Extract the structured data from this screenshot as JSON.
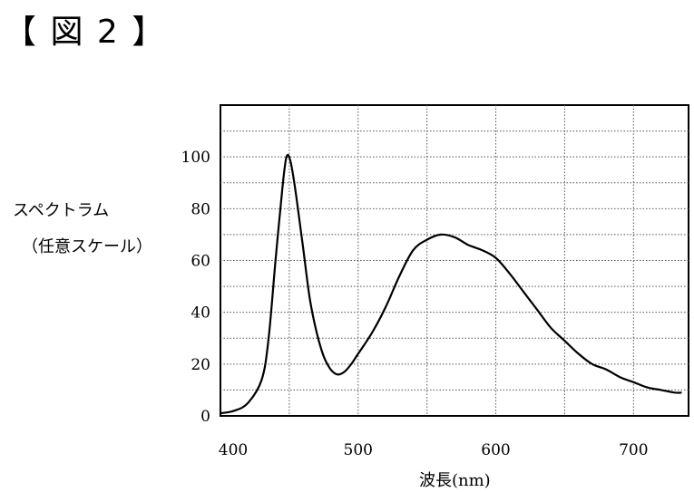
{
  "figure_label": "【 図 2 】",
  "chart_data": {
    "type": "line",
    "title": "",
    "xlabel": "波長(nm)",
    "ylabel_lines": [
      "スペクトラム",
      "（任意スケール）"
    ],
    "xlim": [
      400,
      740
    ],
    "ylim": [
      0,
      120
    ],
    "xticks": [
      400,
      500,
      600,
      700
    ],
    "yticks": [
      0,
      20,
      40,
      60,
      80,
      100
    ],
    "grid": true,
    "series": [
      {
        "x": [
          400,
          410,
          420,
          430,
          435,
          440,
          445,
          448,
          451,
          455,
          460,
          465,
          470,
          475,
          480,
          485,
          490,
          495,
          500,
          510,
          520,
          530,
          540,
          550,
          560,
          570,
          580,
          590,
          600,
          610,
          620,
          630,
          640,
          650,
          660,
          670,
          680,
          690,
          700,
          710,
          720,
          730,
          735
        ],
        "y": [
          1,
          2,
          5,
          14,
          30,
          60,
          88,
          100,
          98,
          85,
          65,
          45,
          32,
          23,
          18,
          16,
          17,
          20,
          24,
          32,
          42,
          54,
          64,
          68,
          70,
          69,
          66,
          64,
          61,
          55,
          48,
          41,
          34,
          29,
          24,
          20,
          18,
          15,
          13,
          11,
          10,
          9,
          9
        ]
      }
    ]
  }
}
